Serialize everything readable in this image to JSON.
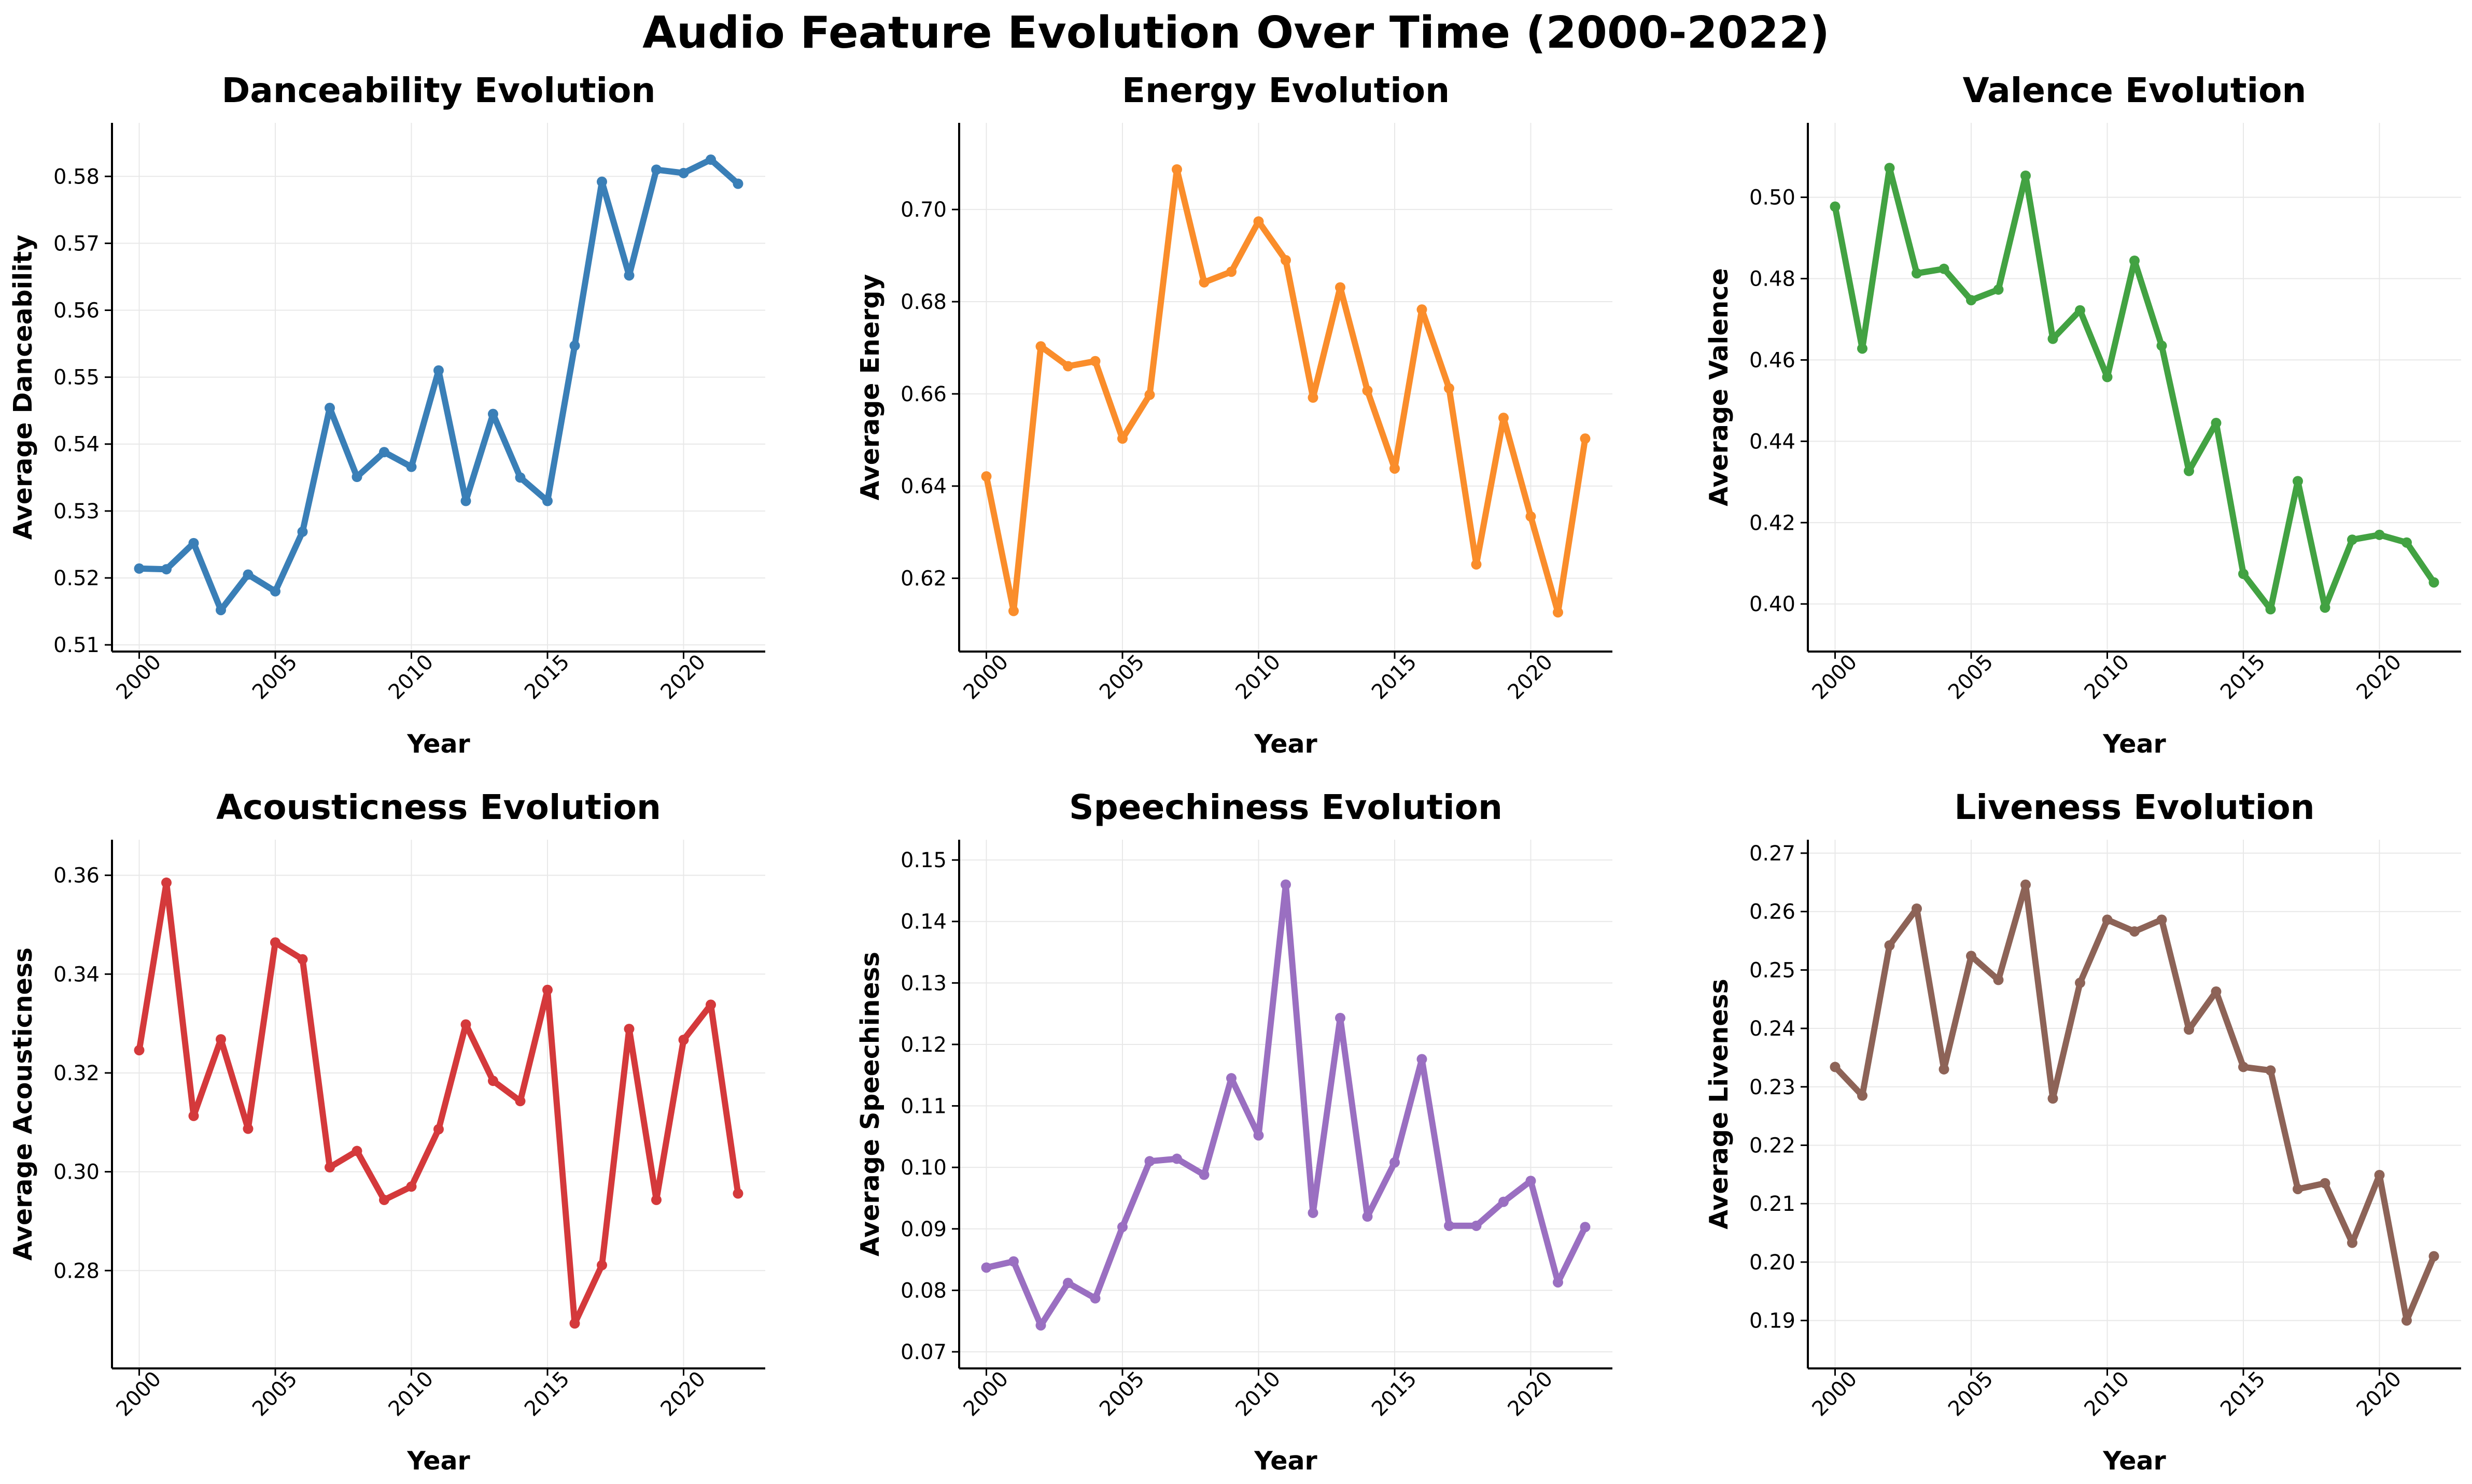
{
  "title": "Audio Feature Evolution Over Time (2000-2022)",
  "chart_data": [
    {
      "type": "line",
      "title": "Danceability Evolution",
      "xlabel": "Year",
      "ylabel": "Average Danceability",
      "color": "#3a7fb7",
      "grid": true,
      "xlim": [
        1999,
        2023
      ],
      "ylim": [
        0.509,
        0.588
      ],
      "xticks": [
        2000,
        2005,
        2010,
        2015,
        2020
      ],
      "yticks": [
        0.51,
        0.52,
        0.53,
        0.54,
        0.55,
        0.56,
        0.57,
        0.58
      ],
      "x": [
        2000,
        2001,
        2002,
        2003,
        2004,
        2005,
        2006,
        2007,
        2008,
        2009,
        2010,
        2011,
        2012,
        2013,
        2014,
        2015,
        2016,
        2017,
        2018,
        2019,
        2020,
        2021,
        2022
      ],
      "y": [
        0.5214,
        0.5213,
        0.5252,
        0.5152,
        0.5205,
        0.518,
        0.5269,
        0.5454,
        0.5351,
        0.5388,
        0.5366,
        0.551,
        0.5315,
        0.5445,
        0.535,
        0.5315,
        0.5547,
        0.5792,
        0.5652,
        0.581,
        0.5805,
        0.5825,
        0.5789
      ]
    },
    {
      "type": "line",
      "title": "Energy Evolution",
      "xlabel": "Year",
      "ylabel": "Average Energy",
      "color": "#fa8d2b",
      "grid": true,
      "xlim": [
        1999,
        2023
      ],
      "ylim": [
        0.6041,
        0.7188
      ],
      "xticks": [
        2000,
        2005,
        2010,
        2015,
        2020
      ],
      "yticks": [
        0.62,
        0.64,
        0.66,
        0.68,
        0.7
      ],
      "ytick_labels": [
        "0.62",
        "0.64",
        "0.66",
        "0.68",
        "0.70"
      ],
      "x": [
        2000,
        2001,
        2002,
        2003,
        2004,
        2005,
        2006,
        2007,
        2008,
        2009,
        2010,
        2011,
        2012,
        2013,
        2014,
        2015,
        2016,
        2017,
        2018,
        2019,
        2020,
        2021,
        2022
      ],
      "y": [
        0.6421,
        0.6129,
        0.6703,
        0.666,
        0.6671,
        0.6503,
        0.6598,
        0.7087,
        0.6842,
        0.6865,
        0.6974,
        0.689,
        0.6592,
        0.6831,
        0.6607,
        0.6438,
        0.6783,
        0.6612,
        0.623,
        0.6548,
        0.6334,
        0.6126,
        0.6503
      ]
    },
    {
      "type": "line",
      "title": "Valence Evolution",
      "xlabel": "Year",
      "ylabel": "Average Valence",
      "color": "#42a242",
      "grid": true,
      "xlim": [
        1999,
        2023
      ],
      "ylim": [
        0.3883,
        0.5183
      ],
      "xticks": [
        2000,
        2005,
        2010,
        2015,
        2020
      ],
      "yticks": [
        0.4,
        0.42,
        0.44,
        0.46,
        0.48,
        0.5
      ],
      "ytick_labels": [
        "0.40",
        "0.42",
        "0.44",
        "0.46",
        "0.48",
        "0.50"
      ],
      "x": [
        2000,
        2001,
        2002,
        2003,
        2004,
        2005,
        2006,
        2007,
        2008,
        2009,
        2010,
        2011,
        2012,
        2013,
        2014,
        2015,
        2016,
        2017,
        2018,
        2019,
        2020,
        2021,
        2022
      ],
      "y": [
        0.4977,
        0.4628,
        0.5072,
        0.4813,
        0.4824,
        0.4747,
        0.4773,
        0.5053,
        0.4652,
        0.4722,
        0.4558,
        0.4844,
        0.4635,
        0.4327,
        0.4445,
        0.4074,
        0.3987,
        0.4302,
        0.3991,
        0.4158,
        0.417,
        0.4151,
        0.4053
      ]
    },
    {
      "type": "line",
      "title": "Acousticness Evolution",
      "xlabel": "Year",
      "ylabel": "Average Acousticness",
      "color": "#d4393b",
      "grid": true,
      "xlim": [
        1999,
        2023
      ],
      "ylim": [
        0.2602,
        0.3672
      ],
      "xticks": [
        2000,
        2005,
        2010,
        2015,
        2020
      ],
      "yticks": [
        0.28,
        0.3,
        0.32,
        0.34,
        0.36
      ],
      "ytick_labels": [
        "0.28",
        "0.30",
        "0.32",
        "0.34",
        "0.36"
      ],
      "x": [
        2000,
        2001,
        2002,
        2003,
        2004,
        2005,
        2006,
        2007,
        2008,
        2009,
        2010,
        2011,
        2012,
        2013,
        2014,
        2015,
        2016,
        2017,
        2018,
        2019,
        2020,
        2021,
        2022
      ],
      "y": [
        0.3246,
        0.3585,
        0.3113,
        0.3268,
        0.3087,
        0.3464,
        0.343,
        0.3009,
        0.3042,
        0.2943,
        0.297,
        0.3086,
        0.3298,
        0.3184,
        0.3143,
        0.3368,
        0.2693,
        0.2811,
        0.3289,
        0.2943,
        0.3267,
        0.3338,
        0.2956
      ]
    },
    {
      "type": "line",
      "title": "Speechiness Evolution",
      "xlabel": "Year",
      "ylabel": "Average Speechiness",
      "color": "#9a6fc1",
      "grid": true,
      "xlim": [
        1999,
        2023
      ],
      "ylim": [
        0.0673,
        0.1533
      ],
      "xticks": [
        2000,
        2005,
        2010,
        2015,
        2020
      ],
      "yticks": [
        0.07,
        0.08,
        0.09,
        0.1,
        0.11,
        0.12,
        0.13,
        0.14,
        0.15
      ],
      "ytick_labels": [
        "0.07",
        "0.08",
        "0.09",
        "0.10",
        "0.11",
        "0.12",
        "0.13",
        "0.14",
        "0.15"
      ],
      "x": [
        2000,
        2001,
        2002,
        2003,
        2004,
        2005,
        2006,
        2007,
        2008,
        2009,
        2010,
        2011,
        2012,
        2013,
        2014,
        2015,
        2016,
        2017,
        2018,
        2019,
        2020,
        2021,
        2022
      ],
      "y": [
        0.0837,
        0.0847,
        0.0743,
        0.0812,
        0.0787,
        0.0903,
        0.101,
        0.1014,
        0.0988,
        0.1145,
        0.1052,
        0.146,
        0.0926,
        0.1243,
        0.092,
        0.1008,
        0.1176,
        0.0905,
        0.0905,
        0.0944,
        0.0978,
        0.0813,
        0.0903
      ]
    },
    {
      "type": "line",
      "title": "Liveness Evolution",
      "xlabel": "Year",
      "ylabel": "Average Liveness",
      "color": "#8d6357",
      "grid": true,
      "xlim": [
        1999,
        2023
      ],
      "ylim": [
        0.1818,
        0.2723
      ],
      "xticks": [
        2000,
        2005,
        2010,
        2015,
        2020
      ],
      "yticks": [
        0.19,
        0.2,
        0.21,
        0.22,
        0.23,
        0.24,
        0.25,
        0.26,
        0.27
      ],
      "ytick_labels": [
        "0.19",
        "0.20",
        "0.21",
        "0.22",
        "0.23",
        "0.24",
        "0.25",
        "0.26",
        "0.27"
      ],
      "x": [
        2000,
        2001,
        2002,
        2003,
        2004,
        2005,
        2006,
        2007,
        2008,
        2009,
        2010,
        2011,
        2012,
        2013,
        2014,
        2015,
        2016,
        2017,
        2018,
        2019,
        2020,
        2021,
        2022
      ],
      "y": [
        0.2334,
        0.2285,
        0.2542,
        0.2605,
        0.233,
        0.2524,
        0.2483,
        0.2646,
        0.228,
        0.2478,
        0.2586,
        0.2566,
        0.2586,
        0.2398,
        0.2463,
        0.2334,
        0.2328,
        0.2125,
        0.2135,
        0.2033,
        0.2149,
        0.19,
        0.201
      ]
    }
  ]
}
